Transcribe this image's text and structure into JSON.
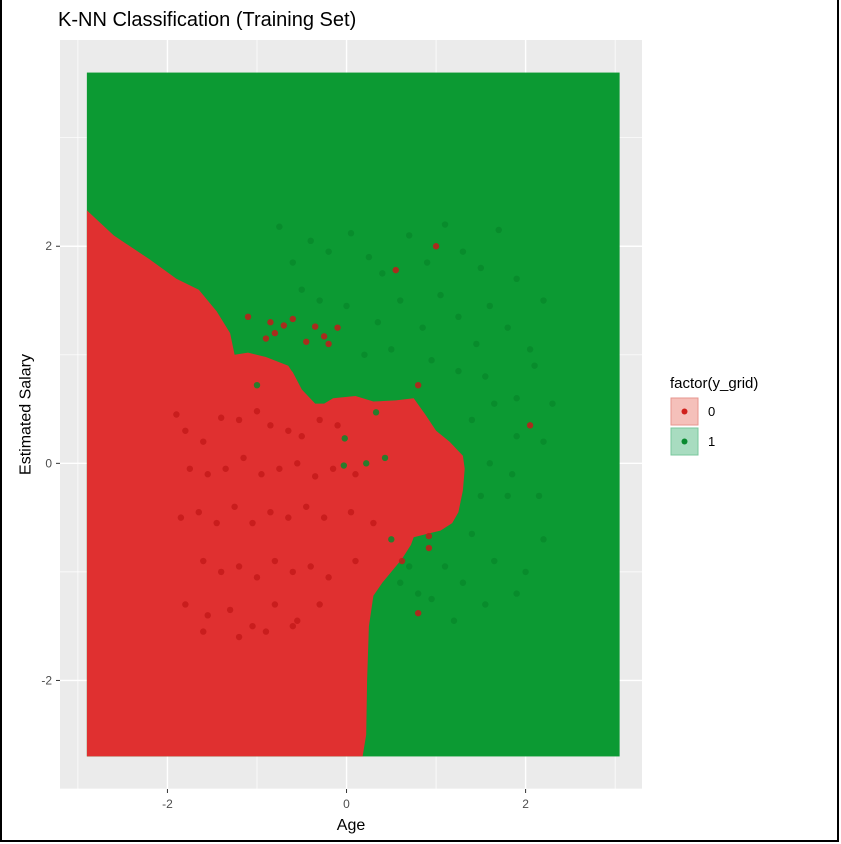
{
  "chart_data": {
    "type": "scatter",
    "title": "K-NN Classification (Training Set)",
    "xlabel": "Age",
    "ylabel": "Estimated Salary",
    "xlim": [
      -3.2,
      3.3
    ],
    "ylim": [
      -3.0,
      3.9
    ],
    "x_ticks": [
      -2,
      0,
      2
    ],
    "y_ticks": [
      -2,
      0,
      2
    ],
    "grid": true,
    "legend": {
      "title": "factor(y_grid)",
      "placement": "right",
      "entries": [
        {
          "label": "0",
          "fill": "#f5c0ba",
          "point": "#d0201c"
        },
        {
          "label": "1",
          "fill": "#a8dcc0",
          "point": "#0a8a30"
        }
      ]
    },
    "colors": {
      "panel": "#ebebeb",
      "gridline": "#ffffff",
      "region_0": "#e03030",
      "region_1": "#0c9a33",
      "point_0": "#c41a1a",
      "point_1": "#088a2c"
    },
    "grid_extent": {
      "x": [
        -2.9,
        3.05
      ],
      "y": [
        -2.7,
        3.6
      ]
    },
    "region_0_boundary": [
      [
        -2.9,
        2.33
      ],
      [
        -2.6,
        2.1
      ],
      [
        -2.2,
        1.88
      ],
      [
        -1.9,
        1.7
      ],
      [
        -1.65,
        1.6
      ],
      [
        -1.45,
        1.4
      ],
      [
        -1.3,
        1.2
      ],
      [
        -1.25,
        1.0
      ],
      [
        -1.1,
        1.02
      ],
      [
        -0.9,
        0.98
      ],
      [
        -0.65,
        0.9
      ],
      [
        -0.62,
        0.86
      ],
      [
        -0.6,
        0.84
      ],
      [
        -0.5,
        0.68
      ],
      [
        -0.35,
        0.55
      ],
      [
        -0.25,
        0.55
      ],
      [
        -0.15,
        0.6
      ],
      [
        0.1,
        0.62
      ],
      [
        0.3,
        0.57
      ],
      [
        0.55,
        0.58
      ],
      [
        0.75,
        0.6
      ],
      [
        0.88,
        0.45
      ],
      [
        1.0,
        0.3
      ],
      [
        1.15,
        0.2
      ],
      [
        1.3,
        0.07
      ],
      [
        1.32,
        -0.05
      ],
      [
        1.3,
        -0.25
      ],
      [
        1.25,
        -0.45
      ],
      [
        1.18,
        -0.55
      ],
      [
        1.05,
        -0.62
      ],
      [
        0.95,
        -0.64
      ],
      [
        0.85,
        -0.66
      ],
      [
        0.75,
        -0.68
      ],
      [
        0.72,
        -0.75
      ],
      [
        0.62,
        -0.88
      ],
      [
        0.5,
        -1.0
      ],
      [
        0.4,
        -1.1
      ],
      [
        0.3,
        -1.22
      ],
      [
        0.25,
        -1.5
      ],
      [
        0.23,
        -2.0
      ],
      [
        0.22,
        -2.5
      ],
      [
        0.18,
        -2.7
      ],
      [
        -2.9,
        -2.7
      ]
    ],
    "series": [
      {
        "name": "0",
        "points": [
          [
            -1.1,
            1.35
          ],
          [
            -0.6,
            1.33
          ],
          [
            -0.7,
            1.27
          ],
          [
            -0.35,
            1.26
          ],
          [
            -0.1,
            1.25
          ],
          [
            -0.25,
            1.17
          ],
          [
            -0.2,
            1.1
          ],
          [
            -0.45,
            1.12
          ],
          [
            -0.85,
            1.3
          ],
          [
            -0.9,
            1.15
          ],
          [
            -0.8,
            1.2
          ],
          [
            0.55,
            1.78
          ],
          [
            1.0,
            2.0
          ],
          [
            0.8,
            0.72
          ],
          [
            2.05,
            0.35
          ],
          [
            0.92,
            -0.67
          ],
          [
            0.92,
            -0.78
          ],
          [
            0.62,
            -0.9
          ],
          [
            0.8,
            -1.38
          ],
          [
            -1.9,
            0.45
          ],
          [
            -1.8,
            0.3
          ],
          [
            -1.6,
            0.2
          ],
          [
            -1.4,
            0.42
          ],
          [
            -1.2,
            0.4
          ],
          [
            -1.0,
            0.48
          ],
          [
            -0.85,
            0.35
          ],
          [
            -0.65,
            0.3
          ],
          [
            -0.5,
            0.25
          ],
          [
            -0.3,
            0.4
          ],
          [
            -0.1,
            0.35
          ],
          [
            -1.75,
            -0.05
          ],
          [
            -1.55,
            -0.1
          ],
          [
            -1.35,
            -0.05
          ],
          [
            -1.15,
            0.05
          ],
          [
            -0.95,
            -0.1
          ],
          [
            -0.75,
            -0.05
          ],
          [
            -0.55,
            0.0
          ],
          [
            -0.35,
            -0.12
          ],
          [
            -0.15,
            -0.05
          ],
          [
            0.1,
            -0.1
          ],
          [
            -1.85,
            -0.5
          ],
          [
            -1.65,
            -0.45
          ],
          [
            -1.45,
            -0.55
          ],
          [
            -1.25,
            -0.4
          ],
          [
            -1.05,
            -0.55
          ],
          [
            -0.85,
            -0.45
          ],
          [
            -0.65,
            -0.5
          ],
          [
            -0.45,
            -0.4
          ],
          [
            -0.25,
            -0.5
          ],
          [
            0.05,
            -0.45
          ],
          [
            0.3,
            -0.55
          ],
          [
            -1.6,
            -0.9
          ],
          [
            -1.4,
            -1.0
          ],
          [
            -1.2,
            -0.95
          ],
          [
            -1.0,
            -1.05
          ],
          [
            -0.8,
            -0.9
          ],
          [
            -0.6,
            -1.0
          ],
          [
            -0.4,
            -0.95
          ],
          [
            -0.2,
            -1.05
          ],
          [
            0.1,
            -0.9
          ],
          [
            -1.8,
            -1.3
          ],
          [
            -1.55,
            -1.4
          ],
          [
            -1.3,
            -1.35
          ],
          [
            -1.05,
            -1.5
          ],
          [
            -0.8,
            -1.3
          ],
          [
            -0.55,
            -1.45
          ],
          [
            -0.3,
            -1.3
          ],
          [
            -1.6,
            -1.55
          ],
          [
            -1.2,
            -1.6
          ],
          [
            -0.9,
            -1.55
          ],
          [
            -0.6,
            -1.5
          ]
        ]
      },
      {
        "name": "1",
        "points": [
          [
            -1.0,
            0.72
          ],
          [
            0.33,
            0.47
          ],
          [
            -0.02,
            0.23
          ],
          [
            -0.03,
            -0.02
          ],
          [
            0.22,
            0.0
          ],
          [
            0.43,
            0.05
          ],
          [
            -0.75,
            2.18
          ],
          [
            -0.6,
            1.85
          ],
          [
            -0.4,
            2.05
          ],
          [
            -0.2,
            1.95
          ],
          [
            0.05,
            2.12
          ],
          [
            0.25,
            1.9
          ],
          [
            0.4,
            1.75
          ],
          [
            0.7,
            2.1
          ],
          [
            0.9,
            1.85
          ],
          [
            1.1,
            2.2
          ],
          [
            1.3,
            1.95
          ],
          [
            1.5,
            1.8
          ],
          [
            1.7,
            2.15
          ],
          [
            1.9,
            1.7
          ],
          [
            -0.5,
            1.6
          ],
          [
            -0.3,
            1.5
          ],
          [
            0.0,
            1.45
          ],
          [
            0.35,
            1.3
          ],
          [
            0.6,
            1.5
          ],
          [
            0.85,
            1.25
          ],
          [
            1.05,
            1.55
          ],
          [
            1.25,
            1.35
          ],
          [
            1.45,
            1.1
          ],
          [
            1.6,
            1.45
          ],
          [
            1.8,
            1.25
          ],
          [
            2.05,
            1.05
          ],
          [
            2.2,
            1.5
          ],
          [
            0.2,
            1.0
          ],
          [
            0.5,
            1.05
          ],
          [
            0.95,
            0.95
          ],
          [
            1.25,
            0.85
          ],
          [
            1.55,
            0.8
          ],
          [
            1.9,
            0.6
          ],
          [
            2.1,
            0.9
          ],
          [
            2.3,
            0.55
          ],
          [
            1.4,
            0.4
          ],
          [
            1.65,
            0.55
          ],
          [
            1.9,
            0.25
          ],
          [
            2.2,
            0.2
          ],
          [
            1.6,
            0.0
          ],
          [
            1.85,
            -0.1
          ],
          [
            2.15,
            -0.3
          ],
          [
            1.5,
            -0.3
          ],
          [
            1.8,
            -0.3
          ],
          [
            2.2,
            -0.7
          ],
          [
            1.4,
            -0.65
          ],
          [
            1.65,
            -0.9
          ],
          [
            2.0,
            -1.0
          ],
          [
            1.1,
            -0.95
          ],
          [
            1.3,
            -1.1
          ],
          [
            0.95,
            -1.25
          ],
          [
            1.2,
            -1.45
          ],
          [
            1.55,
            -1.3
          ],
          [
            1.9,
            -1.2
          ],
          [
            0.6,
            -1.1
          ],
          [
            0.8,
            -1.2
          ],
          [
            0.5,
            -0.7
          ],
          [
            0.7,
            -0.95
          ]
        ]
      }
    ]
  }
}
